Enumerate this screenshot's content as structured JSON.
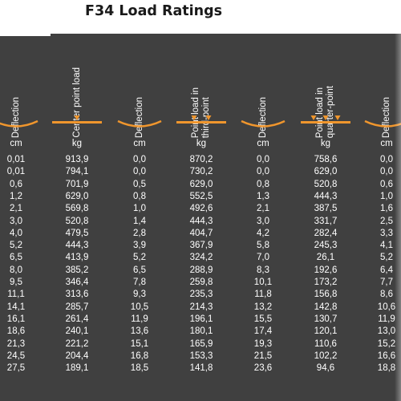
{
  "title": "F34 Load Ratings",
  "colors": {
    "panel": "#404040",
    "accent": "#f0962d",
    "text": "#ffffff"
  },
  "columns": [
    {
      "header": "Deflection",
      "unit": "cm",
      "symbol": "curve-icon",
      "values": [
        "0,01",
        "0,01",
        "0,6",
        "1,2",
        "2,1",
        "3,0",
        "4,0",
        "5,2",
        "6,5",
        "8,0",
        "9,5",
        "11,1",
        "14,1",
        "16,1",
        "18,6",
        "21,3",
        "24,5",
        "27,5"
      ]
    },
    {
      "header": "Center point load",
      "unit": "kg",
      "symbol": "center-point-load-icon",
      "values": [
        "913,9",
        "794,1",
        "701,9",
        "629,0",
        "569,8",
        "520,8",
        "479,5",
        "444,3",
        "413,9",
        "385,2",
        "346,4",
        "313,6",
        "285,7",
        "261,4",
        "240,1",
        "221,2",
        "204,4",
        "189,1"
      ]
    },
    {
      "header": "Deflection",
      "unit": "cm",
      "symbol": "curve-icon",
      "values": [
        "0,0",
        "0,0",
        "0,5",
        "0,8",
        "1,0",
        "1,4",
        "2,8",
        "3,9",
        "5,2",
        "6,5",
        "7,8",
        "9,3",
        "10,5",
        "11,9",
        "13,6",
        "15,1",
        "16,8",
        "18,5"
      ]
    },
    {
      "header": "Point load in\nthird-point",
      "unit": "kg",
      "symbol": "third-point-load-icon",
      "values": [
        "870,2",
        "730,2",
        "629,0",
        "552,5",
        "492,6",
        "444,3",
        "404,7",
        "367,9",
        "324,2",
        "288,9",
        "259,8",
        "235,3",
        "214,3",
        "196,1",
        "180,1",
        "165,9",
        "153,3",
        "141,8"
      ]
    },
    {
      "header": "Deflection",
      "unit": "cm",
      "symbol": "curve-icon",
      "values": [
        "0,0",
        "0,0",
        "0,8",
        "1,3",
        "2,1",
        "3,0",
        "4,2",
        "5,8",
        "7,0",
        "8,3",
        "10,1",
        "11,8",
        "13,2",
        "15,5",
        "17,4",
        "19,3",
        "21,5",
        "23,6"
      ]
    },
    {
      "header": "Point load in\nquarter-point",
      "unit": "kg",
      "symbol": "quarter-point-load-icon",
      "values": [
        "758,6",
        "629,0",
        "520,8",
        "444,3",
        "387,5",
        "331,7",
        "282,4",
        "245,3",
        "26,1",
        "192,6",
        "173,2",
        "156,8",
        "142,8",
        "130,7",
        "120,1",
        "110,6",
        "102,2",
        "94,6"
      ]
    },
    {
      "header": "Deflection",
      "unit": "cm",
      "symbol": "curve-icon",
      "values": [
        "0,0",
        "0,0",
        "0,6",
        "1,0",
        "1,6",
        "2,5",
        "3,3",
        "4,1",
        "5,2",
        "6,4",
        "7,7",
        "8,6",
        "10,6",
        "11,9",
        "13,0",
        "15,2",
        "16,6",
        "18,8"
      ]
    }
  ]
}
